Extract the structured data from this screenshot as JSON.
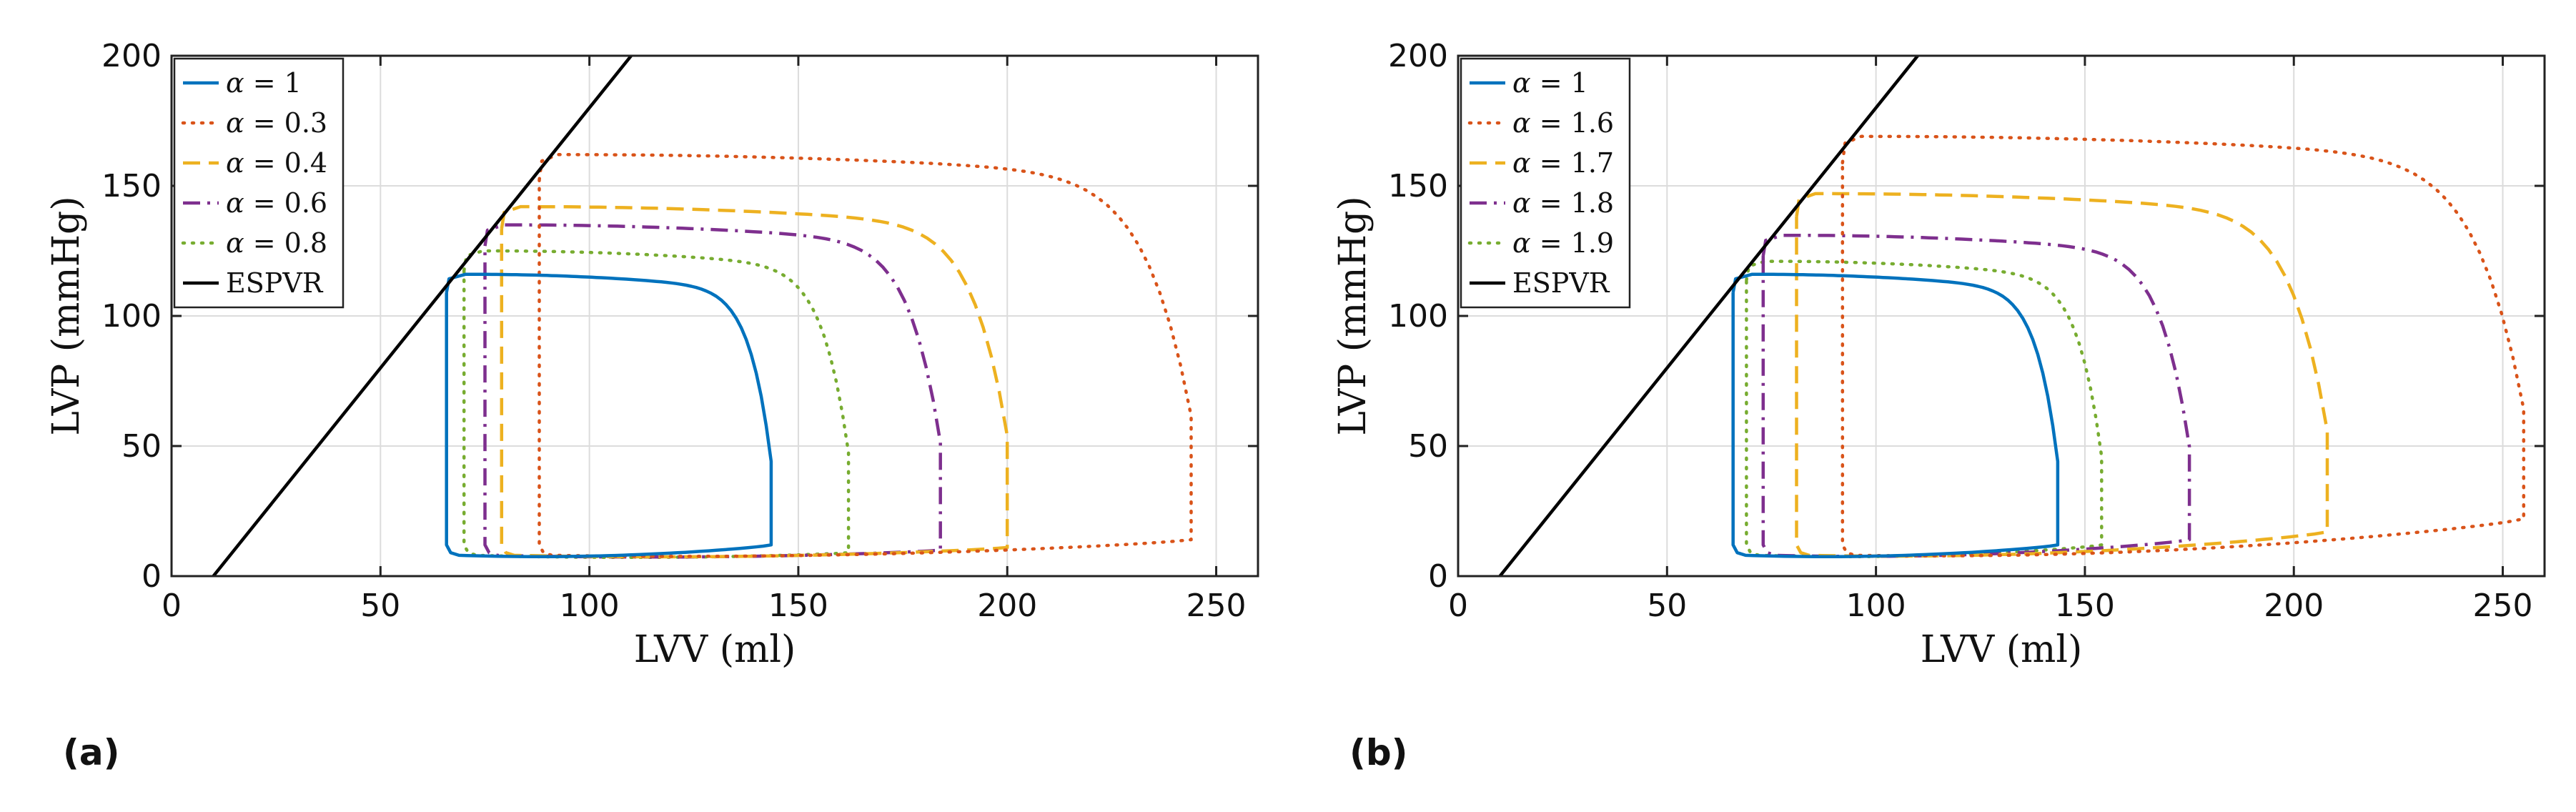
{
  "chart_data": [
    {
      "type": "line",
      "panel_label": "(a)",
      "xlabel": "LVV (ml)",
      "ylabel": "LVP (mmHg)",
      "xlim": [
        0,
        260
      ],
      "ylim": [
        0,
        200
      ],
      "xticks": [
        "0",
        "50",
        "100",
        "150",
        "200",
        "250"
      ],
      "yticks": [
        "0",
        "50",
        "100",
        "150",
        "200"
      ],
      "grid": true,
      "legend_position": "top-left",
      "espvr": {
        "name": "ESPVR",
        "x": [
          10,
          110
        ],
        "y": [
          0,
          200
        ],
        "color": "#000000"
      },
      "series": [
        {
          "name": "α = 1",
          "sym": "α",
          "rest": " = 1",
          "color": "#0072BD",
          "dash": "solid",
          "ved": 65.8,
          "ves": 143.5,
          "pmax": 116,
          "ped": 12
        },
        {
          "name": "α = 0.3",
          "sym": "α",
          "rest": " = 0.3",
          "color": "#D95319",
          "dash": "dot",
          "ved": 88,
          "ves": 244,
          "pmax": 162,
          "ped": 14
        },
        {
          "name": "α = 0.4",
          "sym": "α",
          "rest": " = 0.4",
          "color": "#EDB120",
          "dash": "dash",
          "ved": 79,
          "ves": 200,
          "pmax": 142,
          "ped": 11
        },
        {
          "name": "α = 0.6",
          "sym": "α",
          "rest": " = 0.6",
          "color": "#7E2F8E",
          "dash": "dashdot",
          "ved": 75,
          "ves": 184,
          "pmax": 135,
          "ped": 10
        },
        {
          "name": "α = 0.8",
          "sym": "α",
          "rest": " = 0.8",
          "color": "#77AC30",
          "dash": "dot",
          "ved": 70,
          "ves": 162,
          "pmax": 125,
          "ped": 9
        }
      ]
    },
    {
      "type": "line",
      "panel_label": "(b)",
      "xlabel": "LVV (ml)",
      "ylabel": "LVP (mmHg)",
      "xlim": [
        0,
        260
      ],
      "ylim": [
        0,
        200
      ],
      "xticks": [
        "0",
        "50",
        "100",
        "150",
        "200",
        "250"
      ],
      "yticks": [
        "0",
        "50",
        "100",
        "150",
        "200"
      ],
      "grid": true,
      "legend_position": "top-left",
      "espvr": {
        "name": "ESPVR",
        "x": [
          10,
          110
        ],
        "y": [
          0,
          200
        ],
        "color": "#000000"
      },
      "series": [
        {
          "name": "α = 1",
          "sym": "α",
          "rest": " = 1",
          "color": "#0072BD",
          "dash": "solid",
          "ved": 65.8,
          "ves": 143.5,
          "pmax": 116,
          "ped": 12
        },
        {
          "name": "α = 1.6",
          "sym": "α",
          "rest": " = 1.6",
          "color": "#D95319",
          "dash": "dot",
          "ved": 92,
          "ves": 255,
          "pmax": 169,
          "ped": 22
        },
        {
          "name": "α = 1.7",
          "sym": "α",
          "rest": " = 1.7",
          "color": "#EDB120",
          "dash": "dash",
          "ved": 81,
          "ves": 208,
          "pmax": 147,
          "ped": 17
        },
        {
          "name": "α = 1.8",
          "sym": "α",
          "rest": " = 1.8",
          "color": "#7E2F8E",
          "dash": "dashdot",
          "ved": 73,
          "ves": 175,
          "pmax": 131,
          "ped": 14
        },
        {
          "name": "α = 1.9",
          "sym": "α",
          "rest": " = 1.9",
          "color": "#77AC30",
          "dash": "dot",
          "ved": 69,
          "ves": 154,
          "pmax": 121,
          "ped": 12
        }
      ]
    }
  ]
}
